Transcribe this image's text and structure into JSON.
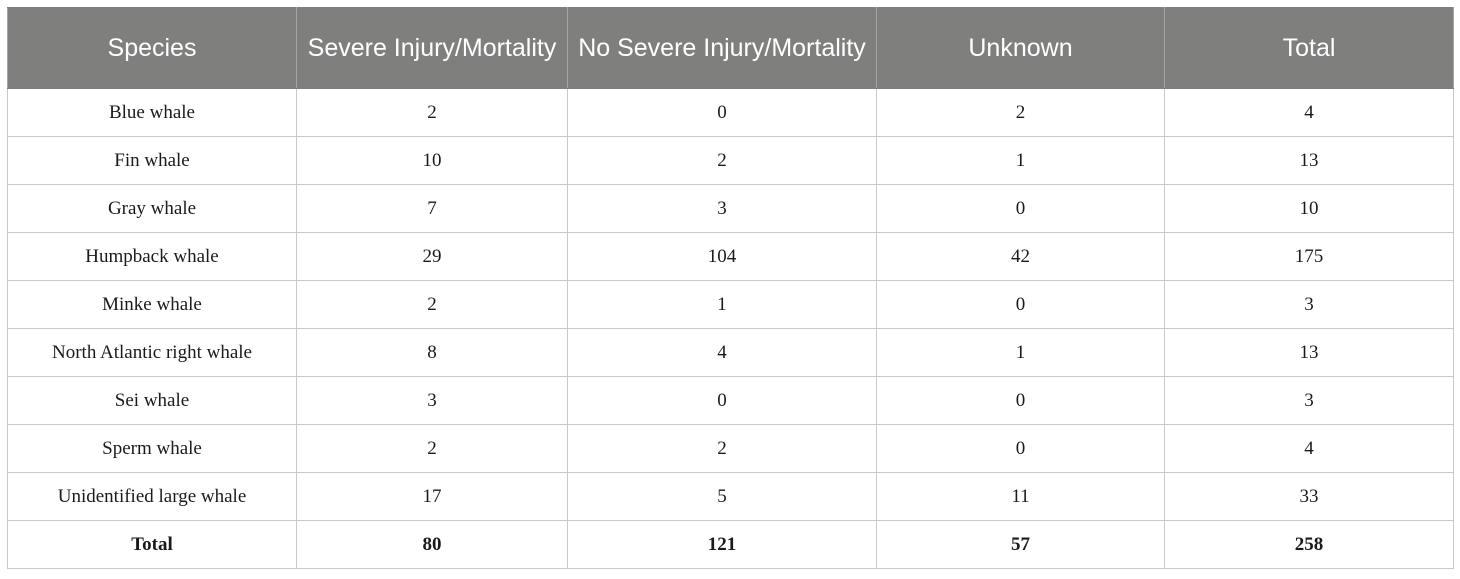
{
  "table": {
    "headers": [
      "Species",
      "Severe Injury/Mortality",
      "No Severe Injury/Mortality",
      "Unknown",
      "Total"
    ],
    "rows": [
      [
        "Blue whale",
        "2",
        "0",
        "2",
        "4"
      ],
      [
        "Fin whale",
        "10",
        "2",
        "1",
        "13"
      ],
      [
        "Gray whale",
        "7",
        "3",
        "0",
        "10"
      ],
      [
        "Humpback whale",
        "29",
        "104",
        "42",
        "175"
      ],
      [
        "Minke whale",
        "2",
        "1",
        "0",
        "3"
      ],
      [
        "North Atlantic right whale",
        "8",
        "4",
        "1",
        "13"
      ],
      [
        "Sei whale",
        "3",
        "0",
        "0",
        "3"
      ],
      [
        "Sperm whale",
        "2",
        "2",
        "0",
        "4"
      ],
      [
        "Unidentified large whale",
        "17",
        "5",
        "11",
        "33"
      ]
    ],
    "total_row": [
      "Total",
      "80",
      "121",
      "57",
      "258"
    ]
  },
  "colors": {
    "header_background": "#7f807e",
    "header_text": "#ffffff",
    "grid_lines": "#c9c9c9"
  }
}
